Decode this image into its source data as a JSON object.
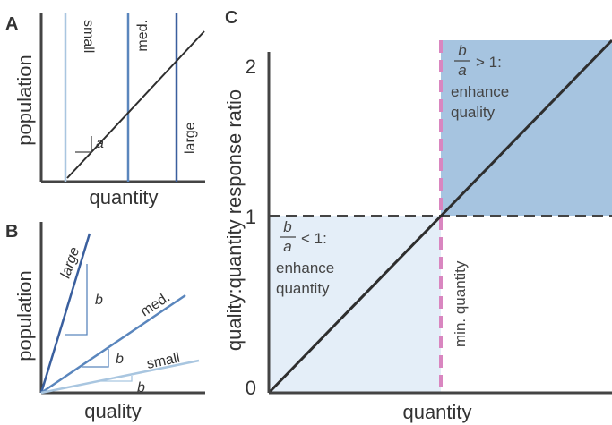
{
  "colors": {
    "axis": "#444444",
    "line_dark": "#2e2e2e",
    "small_line": "#a9c6e0",
    "med_line": "#5a86bd",
    "large_line": "#3a5f9e",
    "shade_light": "#e4eef8",
    "shade_dark": "#a6c4e0",
    "pink_dash": "#d986c0",
    "dash_line": "#444444"
  },
  "panel_a": {
    "letter": "A",
    "xlabel": "quantity",
    "ylabel": "population",
    "cutoffs": [
      {
        "name": "small",
        "label": "small"
      },
      {
        "name": "med",
        "label": "med."
      },
      {
        "name": "large",
        "label": "large"
      }
    ],
    "slope_label": "a"
  },
  "panel_b": {
    "letter": "B",
    "xlabel": "quality",
    "ylabel": "population",
    "lines": [
      {
        "name": "large",
        "label": "large",
        "slope_label": "b"
      },
      {
        "name": "med",
        "label": "med.",
        "slope_label": "b"
      },
      {
        "name": "small",
        "label": "small",
        "slope_label": "b"
      }
    ]
  },
  "panel_c": {
    "letter": "C",
    "xlabel": "quantity",
    "ylabel": "quality:quantity response ratio",
    "yticks": [
      "0",
      "1",
      "2"
    ],
    "upper_region": {
      "frac_num": "b",
      "frac_den": "a",
      "condition": "> 1:",
      "line1": "enhance",
      "line2": "quality"
    },
    "lower_region": {
      "frac_num": "b",
      "frac_den": "a",
      "condition": "< 1:",
      "line1": "enhance",
      "line2": "quantity"
    },
    "vline_label": "min. quantity"
  }
}
